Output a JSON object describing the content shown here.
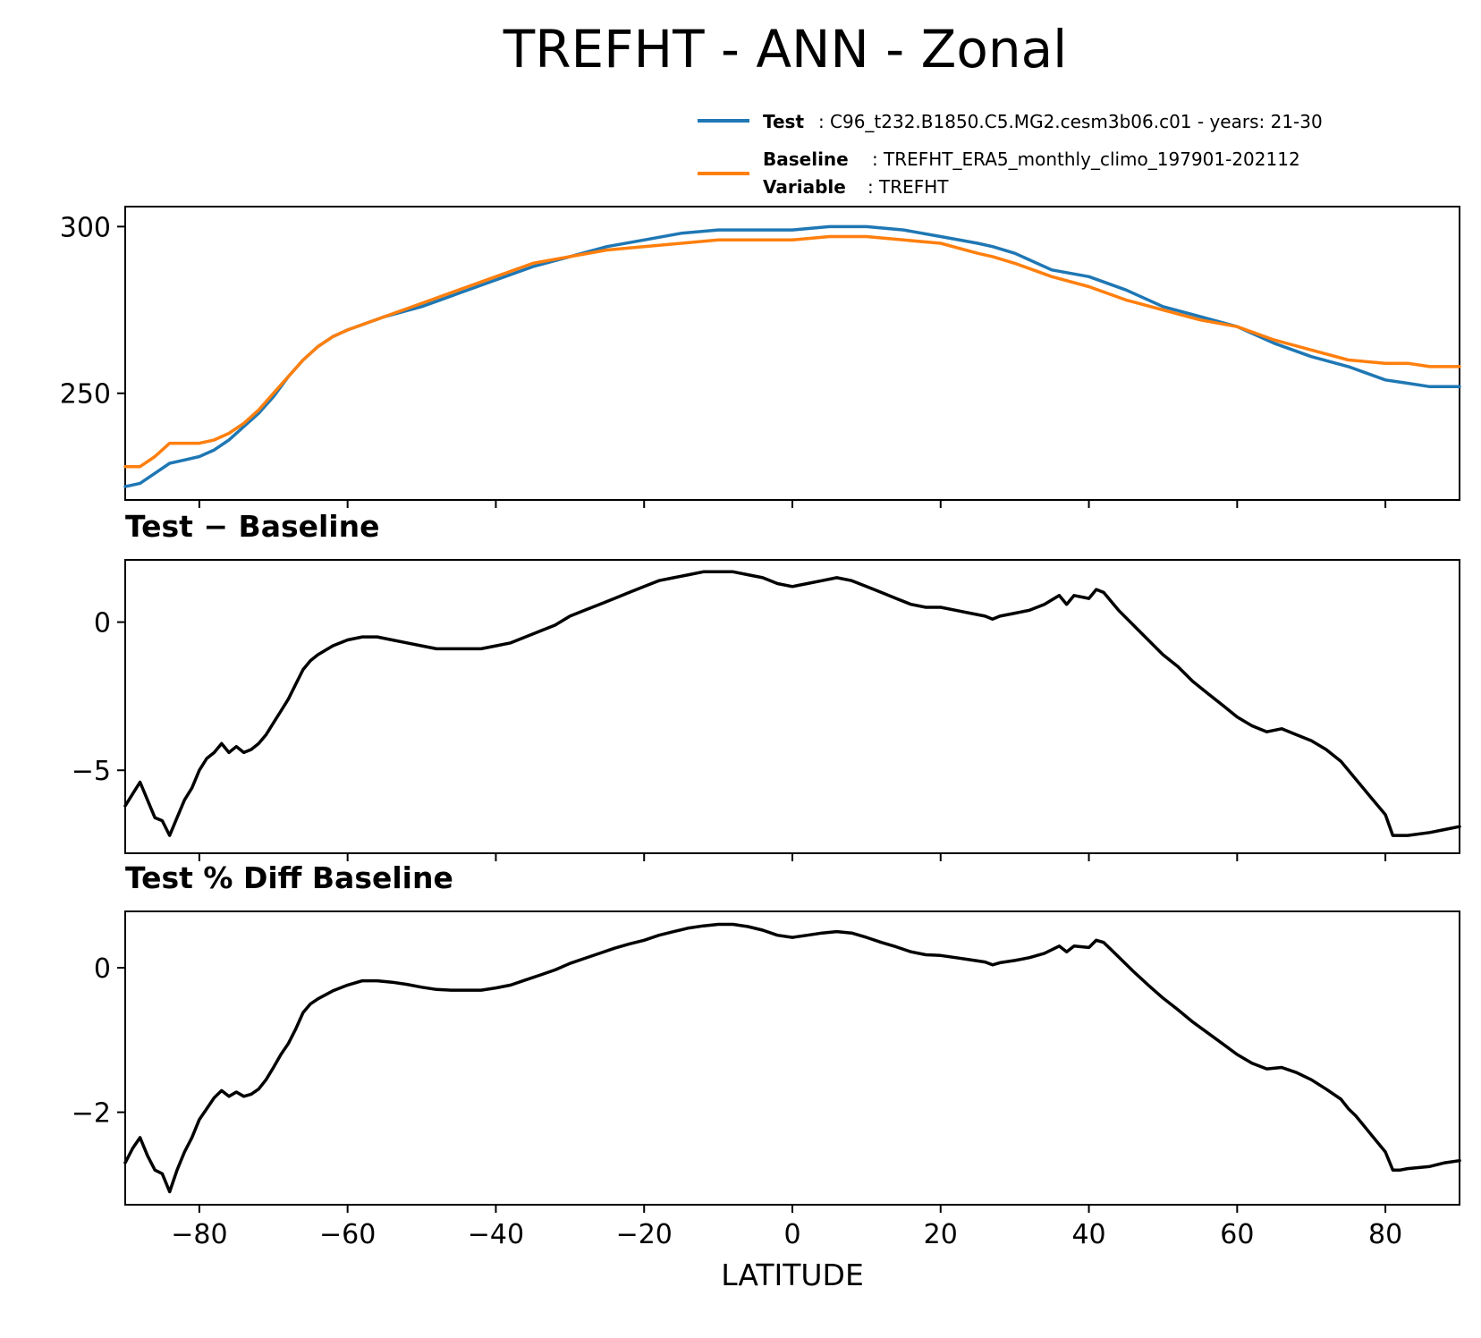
{
  "chart_data": [
    {
      "type": "line",
      "title": "TREFHT - ANN - Zonal",
      "xlabel": "LATITUDE",
      "ylabel": "",
      "xlim": [
        -90,
        90
      ],
      "ylim": [
        218,
        306
      ],
      "yticks": [
        250,
        300
      ],
      "xticks": [
        -80,
        -60,
        -40,
        -20,
        0,
        20,
        40,
        60,
        80
      ],
      "legend_position": "above-right",
      "legend": [
        {
          "bold": "Test",
          "text": "C96_t232.B1850.C5.MG2.cesm3b06.c01 - years: 21-30",
          "color": "#1f77b4"
        },
        {
          "bold": "Baseline",
          "text": "TREFHT_ERA5_monthly_climo_197901-202112",
          "color": "#ff7f0e"
        },
        {
          "bold": "Variable",
          "text": "TREFHT",
          "color": ""
        }
      ],
      "series": [
        {
          "name": "Test",
          "color": "#1f77b4",
          "x": [
            -90,
            -88,
            -86,
            -84,
            -82,
            -80,
            -78,
            -76,
            -74,
            -72,
            -70,
            -68,
            -66,
            -64,
            -62,
            -60,
            -55,
            -50,
            -45,
            -40,
            -35,
            -30,
            -25,
            -20,
            -15,
            -10,
            -5,
            0,
            5,
            10,
            15,
            20,
            25,
            27,
            30,
            35,
            40,
            45,
            50,
            55,
            60,
            65,
            70,
            75,
            80,
            83,
            86,
            90
          ],
          "y": [
            222,
            223,
            226,
            229,
            230,
            231,
            233,
            236,
            240,
            244,
            249,
            255,
            260,
            264,
            267,
            269,
            273,
            276,
            280,
            284,
            288,
            291,
            294,
            296,
            298,
            299,
            299,
            299,
            300,
            300,
            299,
            297,
            295,
            294,
            292,
            287,
            285,
            281,
            276,
            273,
            270,
            265,
            261,
            258,
            254,
            253,
            252,
            252
          ]
        },
        {
          "name": "Baseline",
          "color": "#ff7f0e",
          "x": [
            -90,
            -89,
            -88,
            -86,
            -84,
            -82,
            -80,
            -78,
            -76,
            -74,
            -72,
            -70,
            -68,
            -66,
            -64,
            -62,
            -60,
            -55,
            -50,
            -45,
            -40,
            -35,
            -30,
            -25,
            -20,
            -15,
            -10,
            -5,
            0,
            5,
            10,
            15,
            20,
            25,
            27,
            30,
            35,
            40,
            45,
            50,
            55,
            60,
            65,
            70,
            75,
            80,
            83,
            86,
            90
          ],
          "y": [
            228,
            228,
            228,
            231,
            235,
            235,
            235,
            236,
            238,
            241,
            245,
            250,
            255,
            260,
            264,
            267,
            269,
            273,
            277,
            281,
            285,
            289,
            291,
            293,
            294,
            295,
            296,
            296,
            296,
            297,
            297,
            296,
            295,
            292,
            291,
            289,
            285,
            282,
            278,
            275,
            272,
            270,
            266,
            263,
            260,
            259,
            259,
            258,
            258
          ]
        }
      ]
    },
    {
      "type": "line",
      "title": "Test − Baseline",
      "ylabel": "",
      "xlim": [
        -90,
        90
      ],
      "ylim": [
        -7.8,
        2.1
      ],
      "yticks": [
        -5,
        0
      ],
      "series": [
        {
          "name": "",
          "color": "#000000",
          "x": [
            -90,
            -89,
            -88,
            -87,
            -86,
            -85,
            -84,
            -83,
            -82,
            -81,
            -80,
            -79,
            -78,
            -77,
            -76,
            -75,
            -74,
            -73,
            -72,
            -71,
            -70,
            -69,
            -68,
            -67,
            -66,
            -65,
            -64,
            -62,
            -60,
            -58,
            -56,
            -54,
            -52,
            -50,
            -48,
            -46,
            -44,
            -42,
            -40,
            -38,
            -36,
            -34,
            -32,
            -30,
            -28,
            -26,
            -24,
            -22,
            -20,
            -18,
            -16,
            -14,
            -12,
            -10,
            -8,
            -6,
            -4,
            -2,
            0,
            2,
            4,
            6,
            8,
            10,
            12,
            14,
            16,
            18,
            20,
            22,
            24,
            26,
            27,
            28,
            30,
            32,
            34,
            36,
            37,
            38,
            40,
            41,
            42,
            43,
            44,
            46,
            48,
            50,
            52,
            54,
            56,
            58,
            60,
            62,
            64,
            66,
            68,
            70,
            72,
            74,
            75,
            76,
            78,
            80,
            81,
            82,
            83,
            86,
            88,
            90
          ],
          "y": [
            -6.2,
            -5.8,
            -5.4,
            -6.0,
            -6.6,
            -6.7,
            -7.2,
            -6.6,
            -6.0,
            -5.6,
            -5.0,
            -4.6,
            -4.4,
            -4.1,
            -4.4,
            -4.2,
            -4.4,
            -4.3,
            -4.1,
            -3.8,
            -3.4,
            -3.0,
            -2.6,
            -2.1,
            -1.6,
            -1.3,
            -1.1,
            -0.8,
            -0.6,
            -0.5,
            -0.5,
            -0.6,
            -0.7,
            -0.8,
            -0.9,
            -0.9,
            -0.9,
            -0.9,
            -0.8,
            -0.7,
            -0.5,
            -0.3,
            -0.1,
            0.2,
            0.4,
            0.6,
            0.8,
            1.0,
            1.2,
            1.4,
            1.5,
            1.6,
            1.7,
            1.7,
            1.7,
            1.6,
            1.5,
            1.3,
            1.2,
            1.3,
            1.4,
            1.5,
            1.4,
            1.2,
            1.0,
            0.8,
            0.6,
            0.5,
            0.5,
            0.4,
            0.3,
            0.2,
            0.1,
            0.2,
            0.3,
            0.4,
            0.6,
            0.9,
            0.6,
            0.9,
            0.8,
            1.1,
            1.0,
            0.7,
            0.4,
            -0.1,
            -0.6,
            -1.1,
            -1.5,
            -2.0,
            -2.4,
            -2.8,
            -3.2,
            -3.5,
            -3.7,
            -3.6,
            -3.8,
            -4.0,
            -4.3,
            -4.7,
            -5.0,
            -5.3,
            -5.9,
            -6.5,
            -7.2,
            -7.2,
            -7.2,
            -7.1,
            -7.0,
            -6.9
          ]
        }
      ]
    },
    {
      "type": "line",
      "title": "Test % Diff Baseline",
      "xlabel": "LATITUDE",
      "ylabel": "",
      "xlim": [
        -90,
        90
      ],
      "ylim": [
        -3.28,
        0.78
      ],
      "yticks": [
        -2,
        0
      ],
      "series": [
        {
          "name": "",
          "color": "#000000",
          "x": [
            -90,
            -89,
            -88,
            -87,
            -86,
            -85,
            -84,
            -83,
            -82,
            -81,
            -80,
            -79,
            -78,
            -77,
            -76,
            -75,
            -74,
            -73,
            -72,
            -71,
            -70,
            -69,
            -68,
            -67,
            -66,
            -65,
            -64,
            -62,
            -60,
            -58,
            -56,
            -54,
            -52,
            -50,
            -48,
            -46,
            -44,
            -42,
            -40,
            -38,
            -36,
            -34,
            -32,
            -30,
            -28,
            -26,
            -24,
            -22,
            -20,
            -18,
            -16,
            -14,
            -12,
            -10,
            -8,
            -6,
            -4,
            -2,
            0,
            2,
            4,
            6,
            8,
            10,
            12,
            14,
            16,
            18,
            20,
            22,
            24,
            26,
            27,
            28,
            30,
            32,
            34,
            36,
            37,
            38,
            40,
            41,
            42,
            43,
            44,
            46,
            48,
            50,
            52,
            54,
            56,
            58,
            60,
            62,
            64,
            66,
            68,
            70,
            72,
            74,
            75,
            76,
            78,
            80,
            81,
            82,
            83,
            86,
            88,
            90
          ],
          "y": [
            -2.7,
            -2.5,
            -2.35,
            -2.6,
            -2.8,
            -2.85,
            -3.1,
            -2.8,
            -2.55,
            -2.35,
            -2.1,
            -1.95,
            -1.8,
            -1.7,
            -1.78,
            -1.72,
            -1.78,
            -1.75,
            -1.68,
            -1.55,
            -1.38,
            -1.2,
            -1.05,
            -0.85,
            -0.62,
            -0.5,
            -0.43,
            -0.32,
            -0.24,
            -0.18,
            -0.18,
            -0.2,
            -0.23,
            -0.27,
            -0.3,
            -0.31,
            -0.31,
            -0.31,
            -0.28,
            -0.24,
            -0.17,
            -0.1,
            -0.03,
            0.06,
            0.13,
            0.2,
            0.27,
            0.33,
            0.38,
            0.45,
            0.5,
            0.55,
            0.58,
            0.6,
            0.6,
            0.57,
            0.52,
            0.45,
            0.42,
            0.45,
            0.48,
            0.5,
            0.48,
            0.42,
            0.35,
            0.29,
            0.22,
            0.18,
            0.17,
            0.14,
            0.11,
            0.08,
            0.04,
            0.07,
            0.1,
            0.14,
            0.2,
            0.3,
            0.22,
            0.3,
            0.28,
            0.38,
            0.35,
            0.25,
            0.15,
            -0.05,
            -0.24,
            -0.42,
            -0.58,
            -0.75,
            -0.9,
            -1.05,
            -1.2,
            -1.32,
            -1.4,
            -1.38,
            -1.45,
            -1.55,
            -1.68,
            -1.82,
            -1.95,
            -2.05,
            -2.3,
            -2.55,
            -2.8,
            -2.8,
            -2.78,
            -2.75,
            -2.7,
            -2.67
          ]
        }
      ]
    }
  ]
}
